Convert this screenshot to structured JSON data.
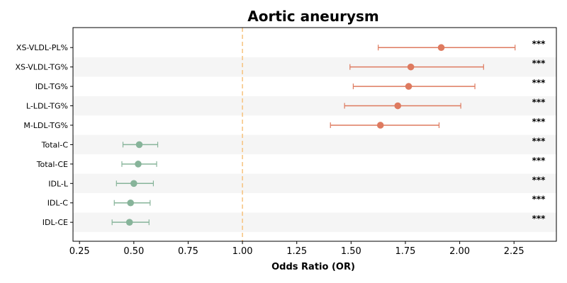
{
  "chart_data": {
    "type": "forest",
    "title": "Aortic aneurysm",
    "xlabel": "Odds Ratio (OR)",
    "xlim": [
      0.22,
      2.445
    ],
    "x_ticks": [
      0.25,
      0.5,
      0.75,
      1.0,
      1.25,
      1.5,
      1.75,
      2.0,
      2.25
    ],
    "x_tick_labels": [
      "0.25",
      "0.50",
      "0.75",
      "1.00",
      "1.25",
      "1.50",
      "1.75",
      "2.00",
      "2.25"
    ],
    "reference_line": 1.0,
    "grid": false,
    "row_banding": true,
    "colors": {
      "risk": "#de7a5f",
      "protective": "#87b49a",
      "reference": "#f6c27c",
      "band": "#f5f5f5"
    },
    "rows": [
      {
        "label": "XS-VLDL-PL%",
        "or": 1.915,
        "lo": 1.625,
        "hi": 2.255,
        "sig": "***",
        "group": "risk"
      },
      {
        "label": "XS-VLDL-TG%",
        "or": 1.775,
        "lo": 1.495,
        "hi": 2.11,
        "sig": "***",
        "group": "risk"
      },
      {
        "label": "IDL-TG%",
        "or": 1.765,
        "lo": 1.51,
        "hi": 2.07,
        "sig": "***",
        "group": "risk"
      },
      {
        "label": "L-LDL-TG%",
        "or": 1.715,
        "lo": 1.47,
        "hi": 2.005,
        "sig": "***",
        "group": "risk"
      },
      {
        "label": "M-LDL-TG%",
        "or": 1.635,
        "lo": 1.405,
        "hi": 1.905,
        "sig": "***",
        "group": "risk"
      },
      {
        "label": "Total-C",
        "or": 0.525,
        "lo": 0.45,
        "hi": 0.61,
        "sig": "***",
        "group": "protective"
      },
      {
        "label": "Total-CE",
        "or": 0.52,
        "lo": 0.445,
        "hi": 0.605,
        "sig": "***",
        "group": "protective"
      },
      {
        "label": "IDL-L",
        "or": 0.5,
        "lo": 0.42,
        "hi": 0.59,
        "sig": "***",
        "group": "protective"
      },
      {
        "label": "IDL-C",
        "or": 0.485,
        "lo": 0.41,
        "hi": 0.575,
        "sig": "***",
        "group": "protective"
      },
      {
        "label": "IDL-CE",
        "or": 0.48,
        "lo": 0.4,
        "hi": 0.57,
        "sig": "***",
        "group": "protective"
      }
    ]
  }
}
